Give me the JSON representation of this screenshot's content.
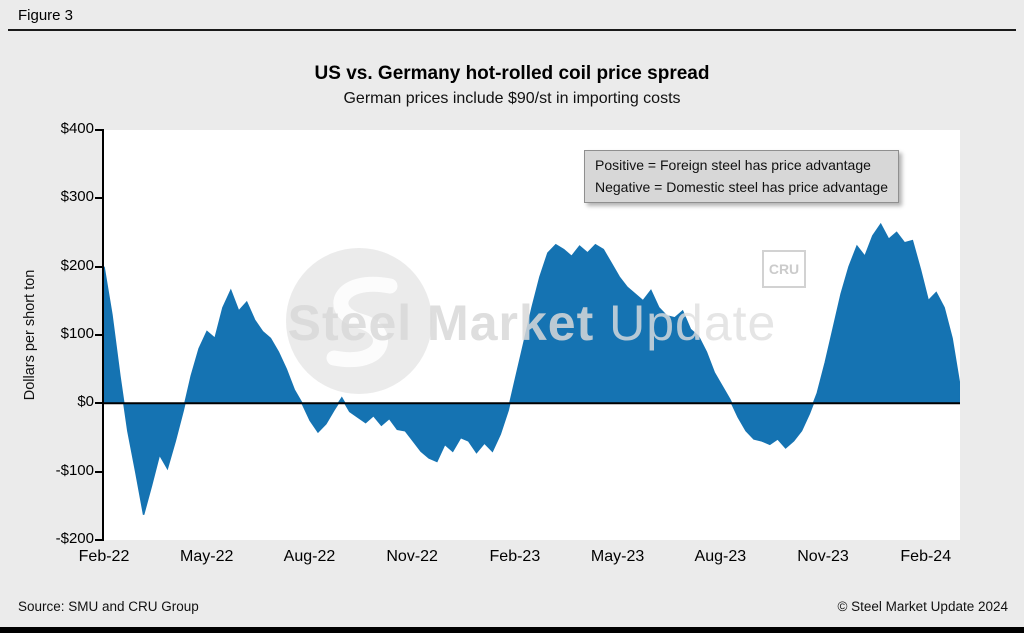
{
  "figure_label": "Figure 3",
  "chart": {
    "title": "US vs. Germany hot-rolled coil price spread",
    "subtitle": "German prices include $90/st in importing costs",
    "ylabel": "Dollars per short ton",
    "annotation": {
      "line1": "Positive = Foreign steel has price advantage",
      "line2": "Negative = Domestic steel has price advantage"
    },
    "watermark": {
      "text_bold": "Steel Market",
      "text_light": " Update",
      "cru": "CRU"
    }
  },
  "chart_data": {
    "type": "area",
    "title": "US vs. Germany hot-rolled coil price spread",
    "subtitle": "German prices include $90/st in importing costs",
    "xlabel": "",
    "ylabel": "Dollars per short ton",
    "ylim": [
      -200,
      400
    ],
    "grid": false,
    "legend": "none",
    "series_name": "US minus Germany HRC price spread ($ per short ton, weekly)",
    "x_unit": "weekly from Feb-2022 to Mar-2024",
    "span_months": 25,
    "fill_color": "#1573b2",
    "zero_line_color": "#000000",
    "y_ticks": [
      {
        "label": "$400",
        "value": 400
      },
      {
        "label": "$300",
        "value": 300
      },
      {
        "label": "$200",
        "value": 200
      },
      {
        "label": "$100",
        "value": 100
      },
      {
        "label": "$0",
        "value": 0
      },
      {
        "label": "-$100",
        "value": -100
      },
      {
        "label": "-$200",
        "value": -200
      }
    ],
    "x_ticks": [
      {
        "label": "Feb-22",
        "month": 0
      },
      {
        "label": "May-22",
        "month": 3
      },
      {
        "label": "Aug-22",
        "month": 6
      },
      {
        "label": "Nov-22",
        "month": 9
      },
      {
        "label": "Feb-23",
        "month": 12
      },
      {
        "label": "May-23",
        "month": 15
      },
      {
        "label": "Aug-23",
        "month": 18
      },
      {
        "label": "Nov-23",
        "month": 21
      },
      {
        "label": "Feb-24",
        "month": 24
      }
    ],
    "values": [
      200,
      130,
      40,
      -40,
      -100,
      -163,
      -120,
      -75,
      -95,
      -55,
      -10,
      40,
      80,
      105,
      95,
      140,
      165,
      135,
      148,
      122,
      105,
      95,
      75,
      50,
      20,
      0,
      -25,
      -42,
      -30,
      -10,
      8,
      -12,
      -20,
      -28,
      -18,
      -32,
      -22,
      -38,
      -40,
      -55,
      -70,
      -80,
      -85,
      -60,
      -70,
      -50,
      -55,
      -72,
      -58,
      -70,
      -45,
      -10,
      40,
      90,
      140,
      185,
      220,
      232,
      225,
      215,
      230,
      220,
      232,
      225,
      205,
      185,
      170,
      160,
      150,
      165,
      140,
      128,
      125,
      135,
      108,
      98,
      75,
      45,
      25,
      5,
      -20,
      -40,
      -52,
      -55,
      -60,
      -52,
      -65,
      -55,
      -40,
      -15,
      15,
      60,
      110,
      160,
      200,
      230,
      215,
      245,
      262,
      240,
      250,
      235,
      238,
      196,
      150,
      162,
      140,
      95,
      25
    ]
  },
  "footer": {
    "source": "Source: SMU and CRU Group",
    "copyright": "© Steel Market Update 2024"
  }
}
